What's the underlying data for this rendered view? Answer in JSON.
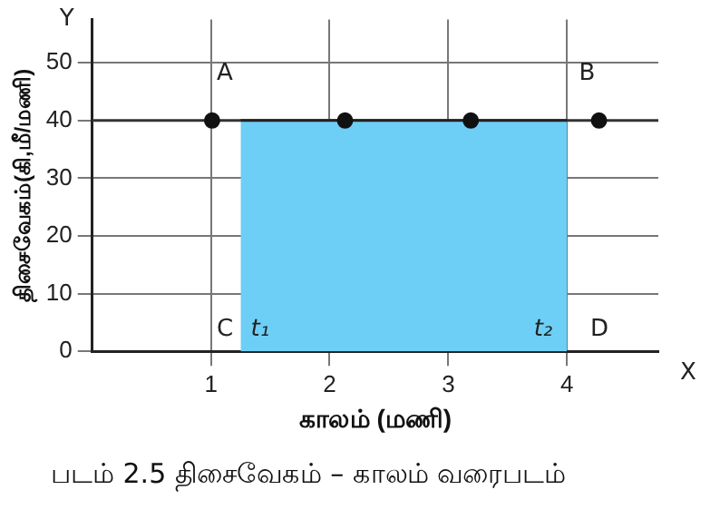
{
  "chart_data": {
    "type": "scatter",
    "xlabel": "காலம் (மணி)",
    "ylabel": "திசைவேகம்(கி,மீ/மணி)",
    "xlim": [
      0,
      4.77
    ],
    "ylim": [
      0,
      57.5
    ],
    "xticks": [
      1,
      2,
      3,
      4
    ],
    "yticks": [
      0,
      10,
      20,
      30,
      40,
      50
    ],
    "grid": true,
    "legend": false,
    "marker": "circle",
    "series": [
      {
        "type": "area",
        "color": "#6dcff6",
        "marker": "none",
        "x": [
          1.25,
          4.0
        ],
        "values": [
          40,
          40
        ]
      },
      {
        "type": "scatter",
        "color": "#111111",
        "x": [
          1.01,
          2.13,
          3.19,
          4.27
        ],
        "values": [
          40,
          40,
          40,
          40
        ]
      }
    ],
    "ref_lines": [
      {
        "axis": "y",
        "value": 40,
        "color": "#333333"
      }
    ],
    "annotations": [
      "A",
      "B",
      "C",
      "D",
      "t₁",
      "t₂",
      "Y",
      "X",
      "படம் 2.5  திசைவேகம் – காலம் வரைபடம்"
    ]
  }
}
